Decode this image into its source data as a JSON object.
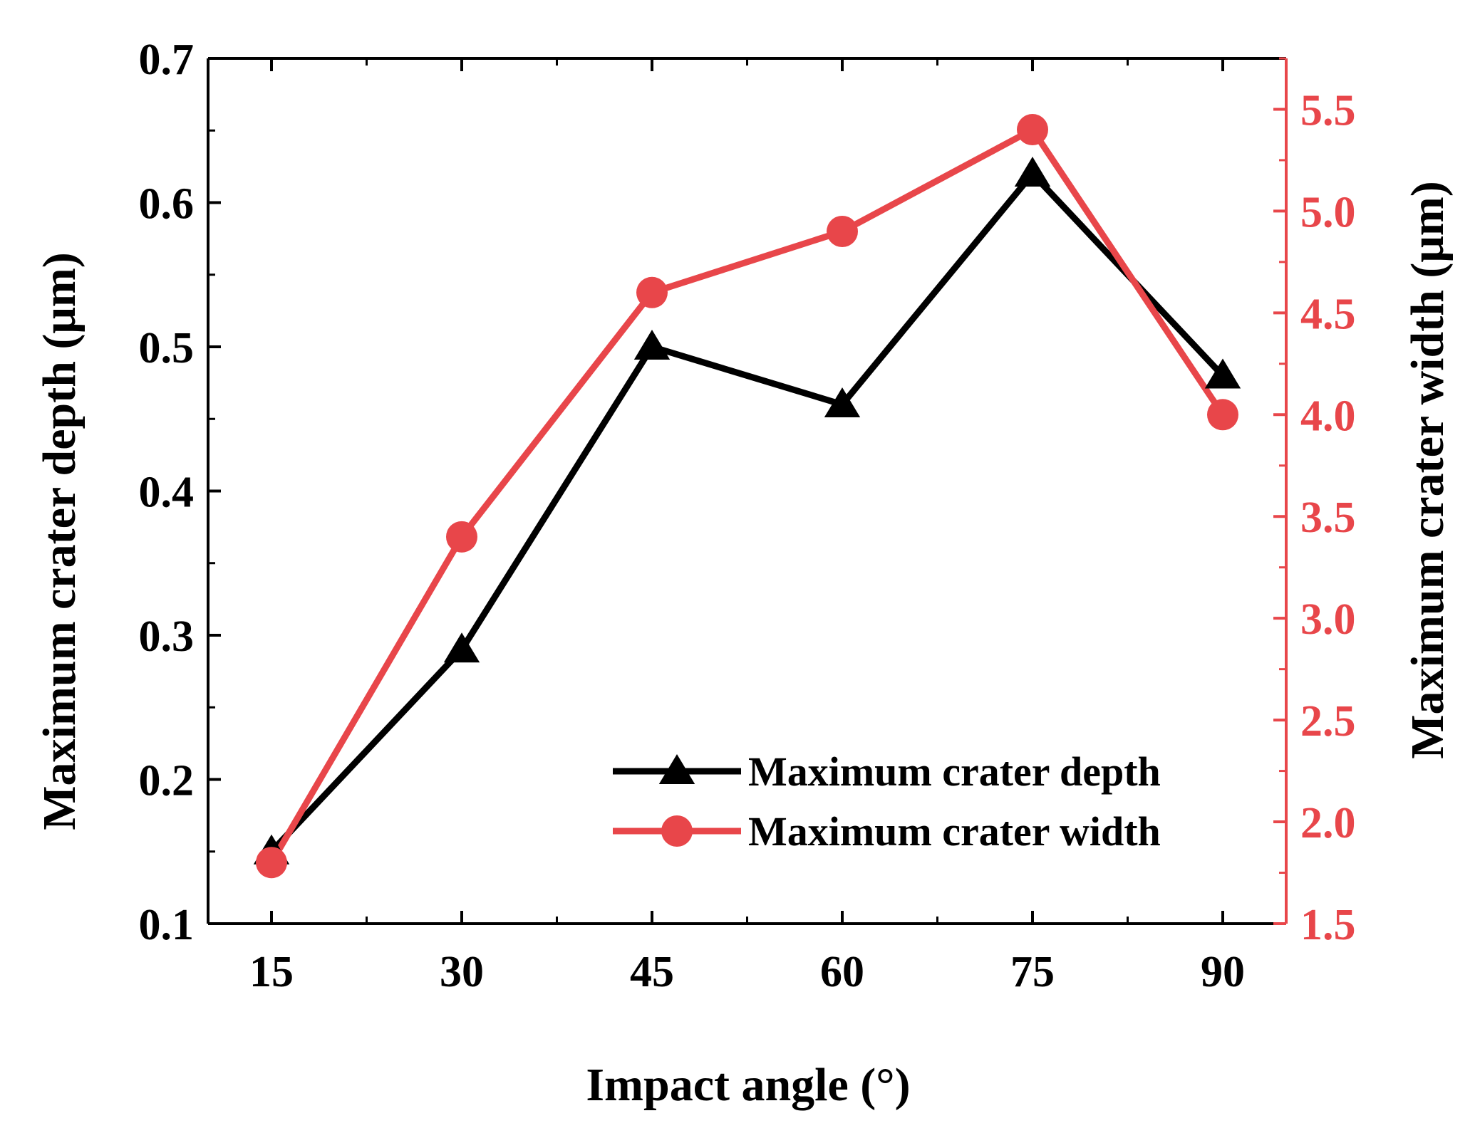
{
  "colors": {
    "depth": "#000000",
    "width": "#e8464a",
    "axis": "#000000",
    "right_axis": "#e8464a"
  },
  "chart_data": {
    "type": "line",
    "title": "",
    "xlabel": "Impact angle (°)",
    "ylabel": "Maximum crater depth (μm)",
    "y2label": "Maximum crater width (μm)",
    "x": [
      15,
      30,
      45,
      60,
      75,
      90
    ],
    "x_tick_labels": [
      "15",
      "30",
      "45",
      "60",
      "75",
      "90"
    ],
    "xlim": [
      10,
      95
    ],
    "ylim": [
      0.1,
      0.7
    ],
    "y_ticks": [
      0.1,
      0.2,
      0.3,
      0.4,
      0.5,
      0.6,
      0.7
    ],
    "y_tick_labels": [
      "0.1",
      "0.2",
      "0.3",
      "0.4",
      "0.5",
      "0.6",
      "0.7"
    ],
    "y2lim": [
      1.5,
      5.75
    ],
    "y2_ticks": [
      1.5,
      2.0,
      2.5,
      3.0,
      3.5,
      4.0,
      4.5,
      5.0,
      5.5
    ],
    "y2_tick_labels": [
      "1.5",
      "2.0",
      "2.5",
      "3.0",
      "3.5",
      "4.0",
      "4.5",
      "5.0",
      "5.5"
    ],
    "grid": false,
    "legend_position": "bottom-right",
    "series": [
      {
        "name": "Maximum crater depth",
        "axis": "left",
        "marker": "triangle",
        "values": [
          0.15,
          0.29,
          0.5,
          0.46,
          0.62,
          0.48
        ]
      },
      {
        "name": "Maximum crater width",
        "axis": "right",
        "marker": "circle",
        "values": [
          1.8,
          3.4,
          4.6,
          4.9,
          5.4,
          4.0
        ]
      }
    ]
  }
}
